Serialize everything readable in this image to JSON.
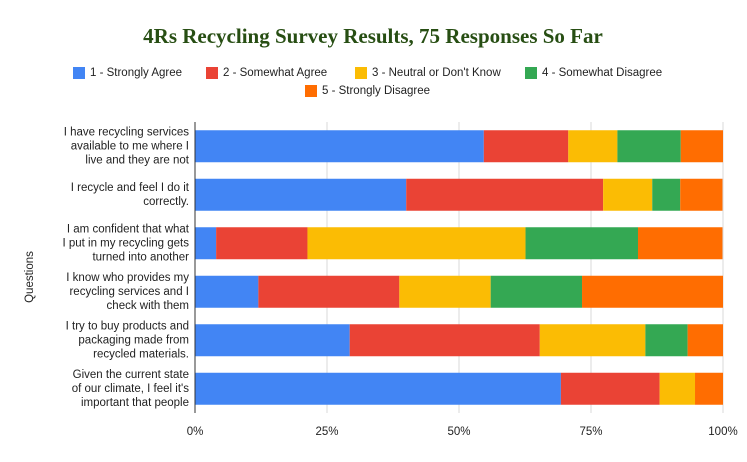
{
  "chart_data": {
    "type": "stacked-bar-horizontal",
    "title": "4Rs Recycling Survey Results, 75 Responses So Far",
    "y_label": "Questions",
    "categories": [
      [
        "I have recycling services",
        "available to me where I",
        "live and they are not"
      ],
      [
        "I recycle and feel I do it",
        "correctly."
      ],
      [
        "I am confident that what",
        "I put in my recycling gets",
        "turned into another"
      ],
      [
        "I know who provides my",
        "recycling services and I",
        "check with them"
      ],
      [
        "I try to buy products and",
        "packaging made from",
        "recycled materials."
      ],
      [
        "Given the current state",
        "of our climate, I feel it's",
        "important that people"
      ]
    ],
    "series": [
      {
        "name": "1 - Strongly Agree",
        "color": "#4285f4",
        "values": [
          54.7,
          40,
          4,
          12,
          29.3,
          69.3
        ]
      },
      {
        "name": "2 - Somewhat Agree",
        "color": "#ea4335",
        "values": [
          16,
          37.3,
          17.3,
          26.7,
          36,
          18.7
        ]
      },
      {
        "name": "3 - Neutral or Don't Know",
        "color": "#fbbc04",
        "values": [
          9.3,
          9.3,
          41.3,
          17.3,
          20,
          6.7
        ]
      },
      {
        "name": "4 - Somewhat Disagree",
        "color": "#34a853",
        "values": [
          12,
          5.3,
          21.3,
          17.3,
          8,
          0
        ]
      },
      {
        "name": "5 - Strongly Disagree",
        "color": "#ff6d01",
        "values": [
          8,
          8,
          16,
          26.7,
          6.7,
          5.3
        ]
      }
    ],
    "xlim": [
      0,
      100
    ],
    "xticks": [
      {
        "value": 0,
        "label": "0%"
      },
      {
        "value": 25,
        "label": "25%"
      },
      {
        "value": 50,
        "label": "50%"
      },
      {
        "value": 75,
        "label": "75%"
      },
      {
        "value": 100,
        "label": "100%"
      }
    ],
    "grid": true
  }
}
